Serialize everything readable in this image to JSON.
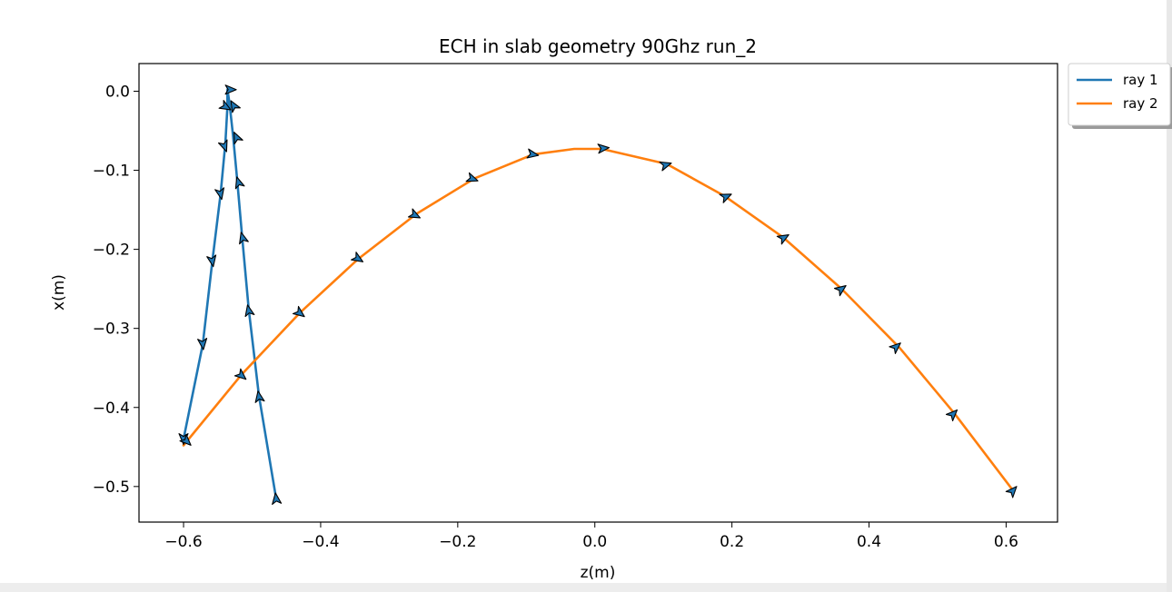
{
  "chart_data": {
    "type": "line",
    "title": "ECH in slab geometry 90Ghz  run_2",
    "xlabel": "z(m)",
    "ylabel": "x(m)",
    "xlim": [
      -0.665,
      0.675
    ],
    "ylim": [
      -0.545,
      0.035
    ],
    "xticks": [
      -0.6,
      -0.4,
      -0.2,
      0.0,
      0.2,
      0.4,
      0.6
    ],
    "xtick_labels": [
      "−0.6",
      "−0.4",
      "−0.2",
      "0.0",
      "0.2",
      "0.4",
      "0.6"
    ],
    "yticks": [
      0.0,
      -0.1,
      -0.2,
      -0.3,
      -0.4,
      -0.5
    ],
    "ytick_labels": [
      "0.0",
      "−0.1",
      "−0.2",
      "−0.3",
      "−0.4",
      "−0.5"
    ],
    "grid": false,
    "legend_position": "outside-top-right",
    "series": [
      {
        "name": "ray 1",
        "color": "#1f77b4",
        "points": [
          [
            -0.6,
            -0.44
          ],
          [
            -0.572,
            -0.32
          ],
          [
            -0.558,
            -0.215
          ],
          [
            -0.546,
            -0.13
          ],
          [
            -0.539,
            -0.065
          ],
          [
            -0.536,
            -0.02
          ],
          [
            -0.536,
            0.002
          ],
          [
            -0.533,
            -0.015
          ],
          [
            -0.528,
            -0.055
          ],
          [
            -0.522,
            -0.11
          ],
          [
            -0.515,
            -0.18
          ],
          [
            -0.505,
            -0.275
          ],
          [
            -0.49,
            -0.385
          ],
          [
            -0.465,
            -0.515
          ]
        ],
        "arrows": [
          [
            -0.6,
            -0.44,
            90
          ],
          [
            -0.572,
            -0.32,
            84
          ],
          [
            -0.558,
            -0.215,
            80
          ],
          [
            -0.546,
            -0.13,
            78
          ],
          [
            -0.54,
            -0.07,
            70
          ],
          [
            -0.538,
            -0.02,
            30
          ],
          [
            -0.531,
            0.002,
            0
          ],
          [
            -0.527,
            -0.018,
            240
          ],
          [
            -0.523,
            -0.058,
            245
          ],
          [
            -0.52,
            -0.115,
            253
          ],
          [
            -0.514,
            -0.185,
            255
          ],
          [
            -0.505,
            -0.277,
            258
          ],
          [
            -0.49,
            -0.386,
            260
          ],
          [
            -0.465,
            -0.515,
            263
          ]
        ]
      },
      {
        "name": "ray 2",
        "color": "#ff7f0e",
        "points": [
          [
            -0.6,
            -0.448
          ],
          [
            -0.515,
            -0.358
          ],
          [
            -0.43,
            -0.28
          ],
          [
            -0.345,
            -0.212
          ],
          [
            -0.26,
            -0.155
          ],
          [
            -0.175,
            -0.11
          ],
          [
            -0.09,
            -0.08
          ],
          [
            -0.03,
            -0.073
          ],
          [
            0.01,
            -0.073
          ],
          [
            0.105,
            -0.092
          ],
          [
            0.19,
            -0.133
          ],
          [
            0.275,
            -0.185
          ],
          [
            0.36,
            -0.25
          ],
          [
            0.445,
            -0.325
          ],
          [
            0.525,
            -0.408
          ],
          [
            0.61,
            -0.505
          ]
        ],
        "arrows": [
          [
            -0.595,
            -0.443,
            44
          ],
          [
            -0.515,
            -0.36,
            40
          ],
          [
            -0.43,
            -0.281,
            37
          ],
          [
            -0.345,
            -0.212,
            32
          ],
          [
            -0.262,
            -0.157,
            27
          ],
          [
            -0.178,
            -0.111,
            20
          ],
          [
            -0.09,
            -0.08,
            10
          ],
          [
            0.013,
            -0.072,
            -5
          ],
          [
            0.104,
            -0.093,
            -17
          ],
          [
            0.192,
            -0.133,
            -24
          ],
          [
            0.276,
            -0.185,
            -30
          ],
          [
            0.36,
            -0.25,
            -36
          ],
          [
            0.44,
            -0.323,
            -41
          ],
          [
            0.523,
            -0.408,
            -45
          ],
          [
            0.61,
            -0.505,
            -48
          ]
        ]
      }
    ]
  }
}
